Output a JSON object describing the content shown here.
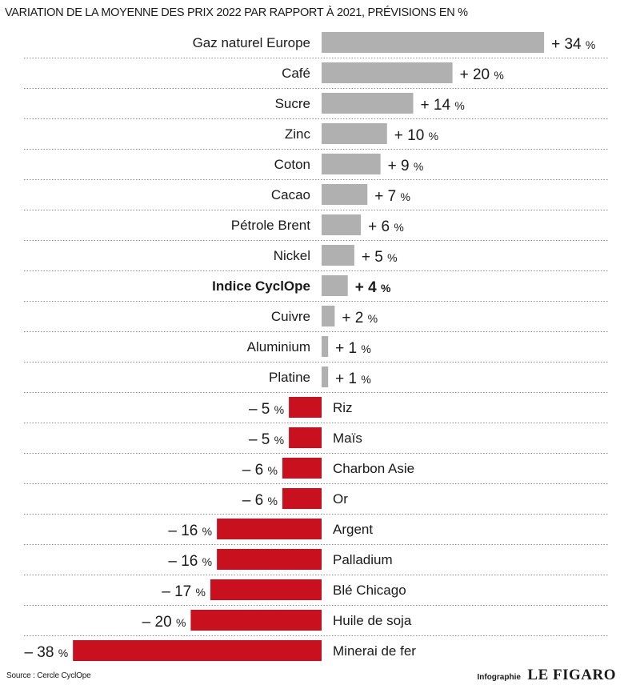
{
  "title": "VARIATION DE LA MOYENNE DES PRIX 2022 PAR RAPPORT À 2021, PRÉVISIONS EN %",
  "source": "Source : Cercle CyclOpe",
  "credit": {
    "label": "Infographie",
    "brand": "LE FIGARO"
  },
  "colors": {
    "positive": "#b0b0b0",
    "negative": "#c8101e",
    "text": "#1a1a1a",
    "divider": "#888888"
  },
  "chart_data": {
    "type": "bar",
    "orientation": "horizontal",
    "categories": [
      "Gaz naturel Europe",
      "Café",
      "Sucre",
      "Zinc",
      "Coton",
      "Cacao",
      "Pétrole Brent",
      "Nickel",
      "Indice CyclOpe",
      "Cuivre",
      "Aluminium",
      "Platine",
      "Riz",
      "Maïs",
      "Charbon Asie",
      "Or",
      "Argent",
      "Palladium",
      "Blé Chicago",
      "Huile de soja",
      "Minerai de fer"
    ],
    "values": [
      34,
      20,
      14,
      10,
      9,
      7,
      6,
      5,
      4,
      2,
      1,
      1,
      -5,
      -5,
      -6,
      -6,
      -16,
      -16,
      -17,
      -20,
      -38
    ],
    "value_labels": [
      "+ 34",
      "+ 20",
      "+ 14",
      "+ 10",
      "+ 9",
      "+ 7",
      "+ 6",
      "+ 5",
      "+ 4",
      "+ 2",
      "+ 1",
      "+ 1",
      "– 5",
      "– 5",
      "– 6",
      "– 6",
      "– 16",
      "– 16",
      "– 17",
      "– 20",
      "– 38"
    ],
    "unit": "%",
    "highlight": "Indice CyclOpe",
    "title": "VARIATION DE LA MOYENNE DES PRIX 2022 PAR RAPPORT À 2021, PRÉVISIONS EN %",
    "grid": false,
    "legend": "none"
  }
}
